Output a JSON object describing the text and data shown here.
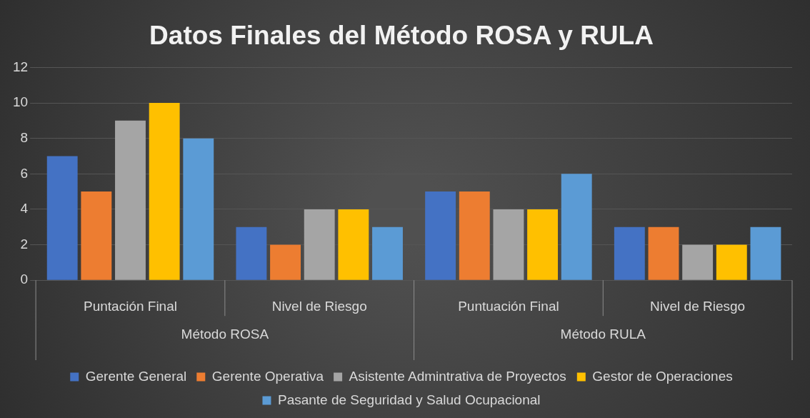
{
  "chart_data": {
    "type": "bar",
    "title": "Datos Finales del Método ROSA y RULA",
    "categories": [
      "Puntación Final",
      "Nivel de Riesgo",
      "Puntuación Final",
      "Nivel de Riesgo"
    ],
    "annotations": [
      "Método ROSA",
      "Método RULA"
    ],
    "series": [
      {
        "name": "Gerente General",
        "color": "#4472c4",
        "values": [
          7,
          3,
          5,
          3
        ]
      },
      {
        "name": "Gerente Operativa",
        "color": "#ed7d31",
        "values": [
          5,
          2,
          5,
          3
        ]
      },
      {
        "name": "Asistente Admintrativa de Proyectos",
        "color": "#a5a5a5",
        "values": [
          9,
          4,
          4,
          2
        ]
      },
      {
        "name": "Gestor de Operaciones",
        "color": "#ffc000",
        "values": [
          10,
          4,
          4,
          2
        ]
      },
      {
        "name": "Pasante de Seguridad y Salud Ocupacional",
        "color": "#5b9bd5",
        "values": [
          8,
          3,
          6,
          3
        ]
      }
    ],
    "ylim": [
      0,
      12
    ],
    "yticks": [
      0,
      2,
      4,
      6,
      8,
      10,
      12
    ],
    "grid": "y",
    "legend": "bottom"
  }
}
